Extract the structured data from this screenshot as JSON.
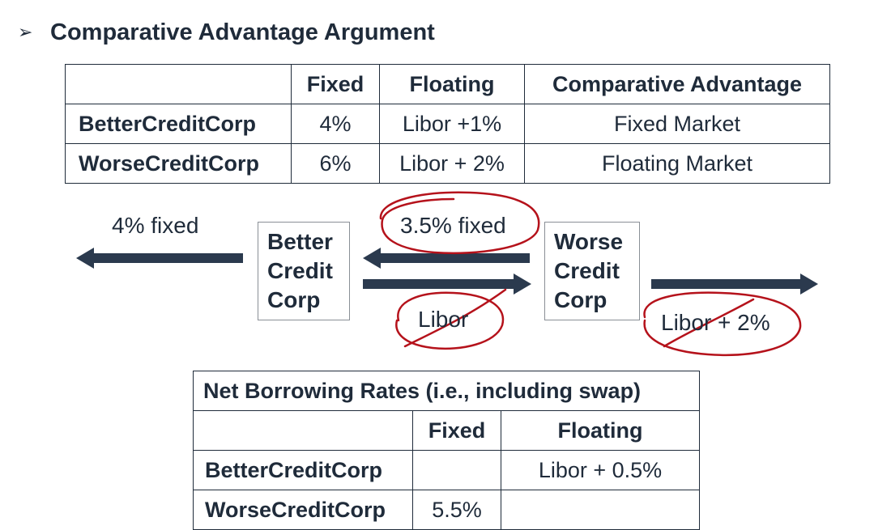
{
  "heading": {
    "bullet": "➢",
    "text": "Comparative Advantage Argument"
  },
  "top_table": {
    "headers": [
      "",
      "Fixed",
      "Floating",
      "Comparative Advantage"
    ],
    "rows": [
      [
        "BetterCreditCorp",
        "4%",
        "Libor +1%",
        "Fixed Market"
      ],
      [
        "WorseCreditCorp",
        "6%",
        "Libor + 2%",
        "Floating Market"
      ]
    ]
  },
  "diagram": {
    "better_box": "Better\nCredit\nCorp",
    "worse_box": "Worse\nCredit\nCorp",
    "left_flow": "4% fixed",
    "swap_fixed": "3.5% fixed",
    "swap_floating": "Libor",
    "right_flow": "Libor + 2%",
    "arrow_color": "#2b3a4e",
    "annotation_color": "#b5121b"
  },
  "bottom_table": {
    "caption": "Net Borrowing Rates (i.e., including swap)",
    "headers": [
      "",
      "Fixed",
      "Floating"
    ],
    "rows": [
      [
        "BetterCreditCorp",
        "",
        "Libor + 0.5%"
      ],
      [
        "WorseCreditCorp",
        "5.5%",
        ""
      ]
    ]
  }
}
